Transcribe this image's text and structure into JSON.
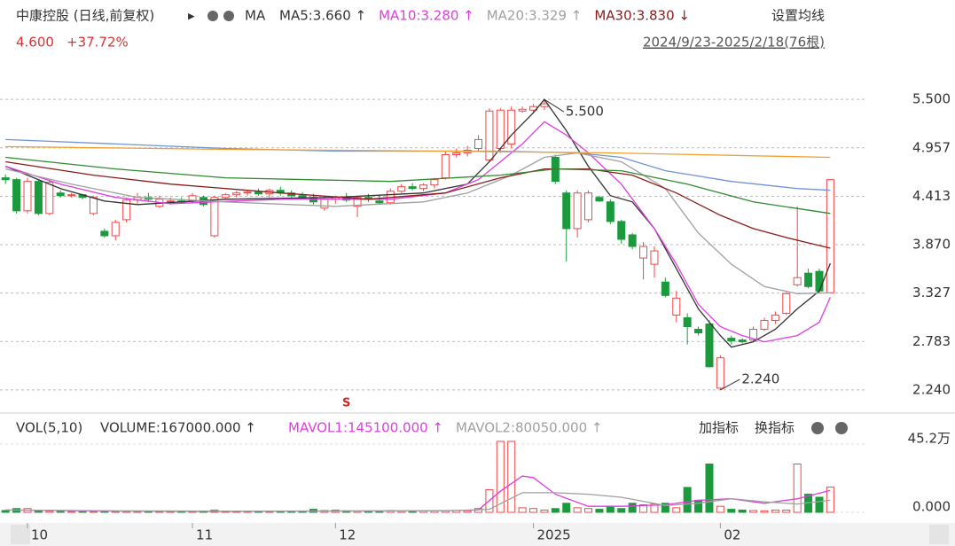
{
  "chart_data": {
    "type": "candlestick",
    "title": "中康控股 (日线,前复权)",
    "indicator": "MA",
    "settings_label": "设置均线",
    "price_label": "4.600",
    "change_label": "+37.72%",
    "range_label": "2024/9/23-2025/2/18(76根)",
    "open": [
      4.62,
      4.6,
      4.25,
      4.58,
      4.22,
      4.45,
      4.42,
      4.43,
      4.22,
      4.02,
      3.97,
      4.15,
      4.37,
      4.4,
      4.3,
      4.35,
      4.36,
      4.36,
      4.4,
      3.97,
      4.4,
      4.43,
      4.45,
      4.46,
      4.44,
      4.48,
      4.45,
      4.42,
      4.4,
      4.28,
      4.38,
      4.4,
      4.3,
      4.4,
      4.36,
      4.34,
      4.47,
      4.52,
      4.5,
      4.54,
      4.62,
      4.88,
      4.9,
      4.95,
      4.82,
      4.95,
      5.0,
      5.37,
      5.38,
      5.42,
      4.85,
      4.45,
      4.05,
      4.15,
      4.4,
      4.35,
      4.13,
      3.98,
      3.72,
      3.65,
      3.45,
      3.08,
      3.05,
      2.92,
      2.98,
      2.26,
      2.82,
      2.8,
      2.8,
      2.92,
      3.02,
      3.1,
      3.42,
      3.55,
      3.57,
      3.33
    ],
    "high": [
      4.66,
      4.62,
      4.62,
      4.6,
      4.6,
      4.48,
      4.45,
      4.44,
      4.42,
      4.05,
      4.15,
      4.4,
      4.45,
      4.45,
      4.42,
      4.4,
      4.4,
      4.45,
      4.42,
      4.42,
      4.45,
      4.47,
      4.48,
      4.5,
      4.5,
      4.52,
      4.48,
      4.46,
      4.44,
      4.42,
      4.42,
      4.45,
      4.42,
      4.44,
      4.42,
      4.5,
      4.55,
      4.56,
      4.56,
      4.62,
      4.92,
      4.95,
      4.98,
      5.1,
      5.4,
      5.4,
      5.42,
      5.42,
      5.45,
      5.5,
      4.88,
      4.48,
      4.48,
      4.48,
      4.42,
      4.38,
      4.15,
      4.0,
      3.9,
      3.85,
      3.5,
      3.35,
      3.1,
      2.95,
      3.02,
      2.63,
      2.85,
      2.82,
      2.95,
      3.05,
      3.12,
      3.35,
      4.3,
      3.6,
      3.6,
      4.6
    ],
    "low": [
      4.55,
      4.22,
      4.22,
      4.2,
      4.2,
      4.4,
      4.4,
      4.38,
      4.2,
      3.95,
      3.92,
      4.12,
      4.33,
      4.35,
      4.28,
      4.32,
      4.33,
      4.33,
      4.3,
      3.95,
      4.38,
      4.4,
      4.42,
      4.42,
      4.4,
      4.42,
      4.4,
      4.38,
      4.32,
      4.25,
      4.33,
      4.35,
      4.18,
      4.35,
      4.32,
      4.32,
      4.45,
      4.48,
      4.47,
      4.5,
      4.6,
      4.85,
      4.86,
      4.92,
      4.8,
      4.9,
      4.95,
      5.35,
      5.35,
      5.38,
      4.55,
      3.68,
      3.95,
      4.12,
      4.35,
      4.1,
      3.88,
      3.82,
      3.48,
      3.5,
      3.28,
      3.0,
      2.75,
      2.85,
      2.49,
      2.24,
      2.75,
      2.76,
      2.78,
      2.9,
      2.98,
      3.08,
      3.4,
      3.38,
      3.33,
      3.33
    ],
    "close": [
      4.6,
      4.25,
      4.58,
      4.22,
      4.57,
      4.42,
      4.43,
      4.4,
      4.4,
      3.97,
      4.12,
      4.37,
      4.4,
      4.38,
      4.38,
      4.36,
      4.35,
      4.42,
      4.32,
      4.4,
      4.43,
      4.45,
      4.46,
      4.44,
      4.48,
      4.45,
      4.42,
      4.4,
      4.35,
      4.38,
      4.4,
      4.37,
      4.4,
      4.38,
      4.34,
      4.47,
      4.52,
      4.5,
      4.54,
      4.6,
      4.88,
      4.9,
      4.93,
      5.05,
      5.37,
      5.38,
      5.38,
      5.39,
      5.42,
      5.45,
      4.58,
      4.05,
      4.45,
      4.45,
      4.36,
      4.13,
      3.93,
      3.85,
      3.85,
      3.8,
      3.3,
      3.27,
      2.95,
      2.88,
      2.5,
      2.6,
      2.79,
      2.78,
      2.92,
      3.02,
      3.08,
      3.32,
      3.5,
      3.4,
      3.35,
      4.6
    ],
    "ylim": [
      2.02,
      5.82
    ],
    "yticks": [
      {
        "value": 2.24,
        "label": "2.240"
      },
      {
        "value": 2.783,
        "label": "2.783"
      },
      {
        "value": 3.327,
        "label": "3.327"
      },
      {
        "value": 3.87,
        "label": "3.870"
      },
      {
        "value": 4.413,
        "label": "4.413"
      },
      {
        "value": 4.957,
        "label": "4.957"
      },
      {
        "value": 5.5,
        "label": "5.500"
      }
    ],
    "xlim": [
      -0.5,
      76.5
    ],
    "xticks": [
      {
        "value": 2,
        "label": "10"
      },
      {
        "value": 17,
        "label": "11"
      },
      {
        "value": 30,
        "label": "12"
      },
      {
        "value": 48,
        "label": "2025"
      },
      {
        "value": 65,
        "label": "02"
      }
    ],
    "grid": true,
    "ma_lines": [
      {
        "label": "MA5:3.660 ↑",
        "color": "#333333",
        "x": [
          0,
          5,
          9,
          12,
          20,
          30,
          38,
          42,
          44,
          46,
          48,
          49,
          51,
          53,
          55,
          57,
          59,
          61,
          63,
          65,
          66,
          68,
          70,
          72,
          74,
          75
        ],
        "values": [
          4.75,
          4.5,
          4.36,
          4.32,
          4.38,
          4.4,
          4.45,
          4.55,
          4.8,
          5.1,
          5.35,
          5.5,
          5.15,
          4.75,
          4.42,
          4.35,
          4.05,
          3.6,
          3.15,
          2.85,
          2.72,
          2.78,
          2.92,
          3.15,
          3.35,
          3.66
        ]
      },
      {
        "label": "MA10:3.280 ↑",
        "color": "#e03ce0",
        "x": [
          0,
          5,
          10,
          15,
          25,
          35,
          40,
          43,
          45,
          47,
          49,
          51,
          53,
          56,
          59,
          61,
          63,
          65,
          67,
          69,
          72,
          74,
          75
        ],
        "values": [
          4.75,
          4.55,
          4.4,
          4.33,
          4.38,
          4.38,
          4.45,
          4.6,
          4.8,
          5.0,
          5.25,
          5.1,
          4.9,
          4.55,
          4.05,
          3.65,
          3.2,
          2.95,
          2.85,
          2.78,
          2.85,
          3.0,
          3.28
        ]
      },
      {
        "label": "MA20:3.329 ↑",
        "color": "#a0a0a0",
        "x": [
          0,
          6,
          12,
          20,
          30,
          38,
          42,
          46,
          49,
          52,
          56,
          60,
          63,
          66,
          69,
          72,
          75
        ],
        "values": [
          4.72,
          4.55,
          4.4,
          4.35,
          4.3,
          4.35,
          4.45,
          4.65,
          4.85,
          4.9,
          4.8,
          4.5,
          4.0,
          3.65,
          3.4,
          3.32,
          3.329
        ]
      },
      {
        "label": "MA30:3.830 ↓",
        "color": "#8b1a1a",
        "x": [
          0,
          8,
          15,
          25,
          33,
          40,
          45,
          49,
          53,
          57,
          61,
          65,
          68,
          71,
          75
        ],
        "values": [
          4.8,
          4.65,
          4.55,
          4.45,
          4.38,
          4.45,
          4.62,
          4.72,
          4.72,
          4.65,
          4.45,
          4.2,
          4.05,
          3.95,
          3.83
        ]
      },
      {
        "color": "#6f93d8",
        "x": [
          0,
          10,
          20,
          30,
          45,
          52,
          56,
          60,
          66,
          72,
          75
        ],
        "values": [
          5.05,
          5.0,
          4.95,
          4.92,
          4.92,
          4.9,
          4.85,
          4.7,
          4.58,
          4.5,
          4.48
        ]
      },
      {
        "color": "#f0a030",
        "x": [
          0,
          20,
          40,
          55,
          75
        ],
        "values": [
          4.97,
          4.94,
          4.92,
          4.9,
          4.85
        ]
      },
      {
        "color": "#2f8a2f",
        "x": [
          0,
          10,
          20,
          35,
          45,
          50,
          56,
          62,
          68,
          75
        ],
        "values": [
          4.85,
          4.72,
          4.62,
          4.58,
          4.65,
          4.72,
          4.7,
          4.55,
          4.35,
          4.22
        ]
      }
    ],
    "annotations": [
      {
        "label": "5.500",
        "x": 49,
        "y": 5.5
      },
      {
        "label": "2.240",
        "x": 65,
        "y": 2.24
      }
    ],
    "signal": {
      "label": "S",
      "x": 31
    },
    "volume": {
      "indicator": "VOL(5,10)",
      "label": "VOLUME:167000.000 ↑",
      "values": [
        12000,
        25000,
        25000,
        10000,
        8000,
        6000,
        5000,
        5000,
        6000,
        8000,
        6000,
        7000,
        5000,
        5000,
        6000,
        5000,
        6000,
        7000,
        6000,
        15000,
        6000,
        5000,
        6000,
        5000,
        6000,
        7000,
        6000,
        5000,
        20000,
        12000,
        15000,
        10000,
        8000,
        8000,
        7000,
        12000,
        8000,
        8000,
        9000,
        10000,
        12000,
        12000,
        10000,
        25000,
        150000,
        470000,
        470000,
        30000,
        25000,
        15000,
        25000,
        60000,
        30000,
        25000,
        20000,
        35000,
        25000,
        60000,
        50000,
        55000,
        60000,
        30000,
        165000,
        80000,
        320000,
        40000,
        20000,
        15000,
        12000,
        10000,
        15000,
        15000,
        320000,
        120000,
        100000,
        167000
      ],
      "ylim": [
        0,
        505000
      ],
      "yticks": [
        {
          "value": 0,
          "label": "0.000"
        },
        {
          "value": 452000,
          "label": "45.2万"
        }
      ],
      "lines": [
        {
          "label": "MAVOL1:145100.000 ↑",
          "color": "#e03ce0",
          "x": [
            0,
            10,
            20,
            30,
            40,
            43,
            45,
            47,
            48,
            50,
            53,
            56,
            60,
            63,
            66,
            69,
            72,
            75
          ],
          "values": [
            15000,
            8000,
            7000,
            9000,
            11000,
            15000,
            140000,
            240000,
            230000,
            120000,
            40000,
            40000,
            50000,
            80000,
            90000,
            60000,
            90000,
            145100
          ]
        },
        {
          "label": "MAVOL2:80050.000 ↑",
          "color": "#a0a0a0",
          "x": [
            0,
            10,
            20,
            30,
            40,
            44,
            47,
            50,
            53,
            56,
            60,
            63,
            66,
            69,
            72,
            75
          ],
          "values": [
            15000,
            10000,
            8000,
            9000,
            10000,
            20000,
            130000,
            130000,
            120000,
            100000,
            45000,
            60000,
            90000,
            70000,
            55000,
            80050
          ]
        }
      ]
    },
    "tools": [
      "加指标",
      "换指标"
    ]
  }
}
